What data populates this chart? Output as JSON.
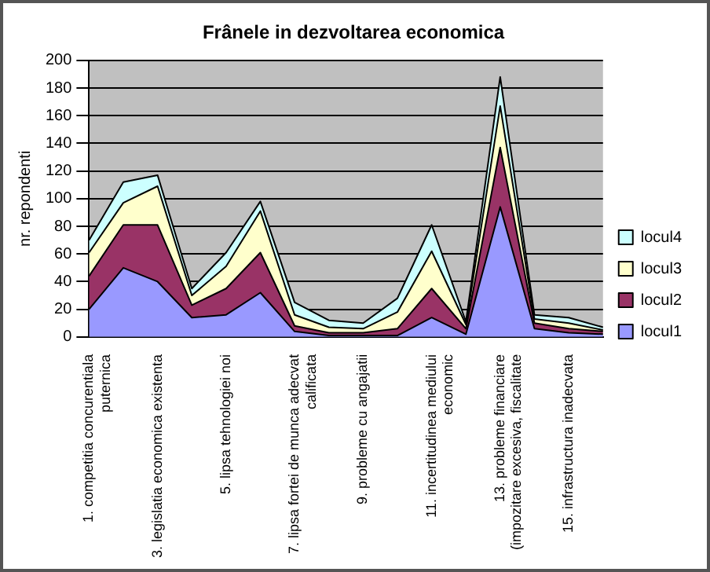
{
  "chart_data": {
    "type": "area",
    "title": "Frânele in dezvoltarea economica",
    "ylabel": "nr. repondenti",
    "categories": [
      "1. competitia concurentiala puternica",
      null,
      "3. legislatia economica existenta",
      null,
      "5. lipsa tehnologiei noi",
      null,
      "7. lipsa fortei de munca adecvat calificata",
      null,
      "9. probleme cu angajatii",
      null,
      "11. incertitudinea mediului economic",
      null,
      "13. probleme financiare (impozitare excesiva, fiscalitate",
      null,
      "15. infrastructura inadecvata",
      null
    ],
    "series": [
      {
        "name": "locul1",
        "color": "#9999ff",
        "values": [
          20,
          50,
          40,
          14,
          16,
          32,
          4,
          1,
          1,
          1,
          14,
          2,
          94,
          6,
          3,
          2
        ]
      },
      {
        "name": "locul2",
        "color": "#993366",
        "values": [
          24,
          31,
          41,
          9,
          19,
          29,
          4,
          2,
          2,
          5,
          21,
          4,
          43,
          4,
          3,
          2
        ]
      },
      {
        "name": "locul3",
        "color": "#ffffcc",
        "values": [
          17,
          16,
          28,
          7,
          16,
          30,
          8,
          4,
          3,
          12,
          27,
          3,
          30,
          3,
          4,
          1
        ]
      },
      {
        "name": "locul4",
        "color": "#ccffff",
        "values": [
          9,
          15,
          8,
          5,
          10,
          7,
          9,
          5,
          4,
          10,
          19,
          2,
          21,
          3,
          4,
          2
        ]
      }
    ],
    "stacked": true,
    "ylim": [
      0,
      200
    ],
    "yticks": [
      0,
      20,
      40,
      60,
      80,
      100,
      120,
      140,
      160,
      180,
      200
    ],
    "grid": "y",
    "legend": "right"
  }
}
